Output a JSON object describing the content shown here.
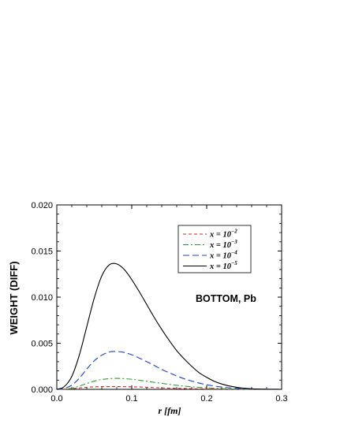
{
  "chart_data": {
    "type": "line",
    "xlabel": "r [fm]",
    "ylabel": "WEIGHT (DIFF)",
    "xlim": [
      0.0,
      0.3
    ],
    "ylim": [
      0.0,
      0.02
    ],
    "x_ticks": [
      "0.0",
      "0.1",
      "0.2",
      "0.3"
    ],
    "y_ticks": [
      "0.000",
      "0.005",
      "0.010",
      "0.015",
      "0.020"
    ],
    "annotation": "BOTTOM, Pb",
    "grid": false,
    "legend_position": "top-right",
    "x": [
      0.0,
      0.01,
      0.02,
      0.03,
      0.04,
      0.05,
      0.06,
      0.07,
      0.08,
      0.09,
      0.1,
      0.11,
      0.12,
      0.13,
      0.14,
      0.15,
      0.16,
      0.17,
      0.18,
      0.19,
      0.2,
      0.21,
      0.22,
      0.23,
      0.24,
      0.25,
      0.26,
      0.27,
      0.28,
      0.29,
      0.3
    ],
    "series": [
      {
        "name": "x = 10-2",
        "label_base": "x = 10",
        "label_exp": "−2",
        "color": "#d62020",
        "dash": "4,3",
        "values": [
          0.0,
          2e-05,
          7e-05,
          0.00015,
          0.00022,
          0.00027,
          0.00029,
          0.0003,
          0.0003,
          0.00029,
          0.00027,
          0.00025,
          0.00022,
          0.00019,
          0.00016,
          0.00013,
          0.00011,
          9e-05,
          7e-05,
          5e-05,
          4e-05,
          3e-05,
          2e-05,
          1.5e-05,
          1e-05,
          6e-06,
          4e-06,
          2e-06,
          1e-06,
          5e-07,
          0.0
        ]
      },
      {
        "name": "x = 10-3",
        "label_base": "x = 10",
        "label_exp": "−3",
        "color": "#2ca02c",
        "dash": "7,3,2,3",
        "values": [
          0.0,
          3e-05,
          0.00013,
          0.00035,
          0.00063,
          0.00089,
          0.00107,
          0.00116,
          0.00119,
          0.00116,
          0.00109,
          0.00099,
          0.00088,
          0.00076,
          0.00065,
          0.00054,
          0.00044,
          0.00035,
          0.00027,
          0.00021,
          0.00016,
          0.00012,
          8e-05,
          6e-05,
          4e-05,
          2.5e-05,
          1.5e-05,
          1e-05,
          5e-06,
          2e-06,
          0.0
        ]
      },
      {
        "name": "x = 10-4",
        "label_base": "x = 10",
        "label_exp": "−4",
        "color": "#1f3fd6",
        "dash": "8,4",
        "values": [
          0.0,
          0.0001,
          0.00045,
          0.0012,
          0.0022,
          0.0031,
          0.0037,
          0.00405,
          0.0041,
          0.004,
          0.00375,
          0.0034,
          0.003,
          0.0026,
          0.00215,
          0.0018,
          0.00145,
          0.00115,
          0.0009,
          0.00068,
          0.0005,
          0.00036,
          0.00025,
          0.00017,
          0.00011,
          7e-05,
          4e-05,
          2e-05,
          1e-05,
          4e-06,
          0.0
        ]
      },
      {
        "name": "x = 10-5",
        "label_base": "x = 10",
        "label_exp": "−5",
        "color": "#000000",
        "dash": "",
        "values": [
          0.0,
          0.0003,
          0.0014,
          0.0037,
          0.0068,
          0.0099,
          0.0123,
          0.0135,
          0.0136,
          0.013,
          0.0119,
          0.0106,
          0.0092,
          0.0078,
          0.0065,
          0.0053,
          0.0042,
          0.0033,
          0.0025,
          0.0018,
          0.0013,
          0.00088,
          0.00058,
          0.00037,
          0.00022,
          0.00012,
          6e-05,
          3e-05,
          1e-05,
          3e-06,
          0.0
        ]
      }
    ]
  }
}
